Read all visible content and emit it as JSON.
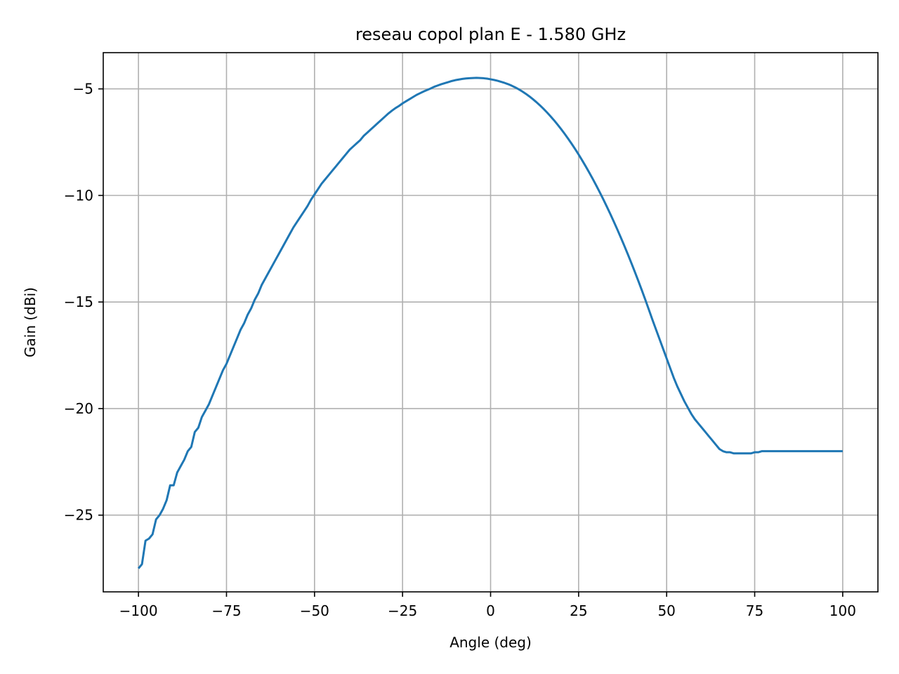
{
  "chart_data": {
    "type": "line",
    "title": "reseau copol plan E - 1.580 GHz",
    "xlabel": "Angle (deg)",
    "ylabel": "Gain (dBi)",
    "xlim": [
      -110,
      110
    ],
    "ylim": [
      -28.6,
      -3.3
    ],
    "xticks": [
      -100,
      -75,
      -50,
      -25,
      0,
      25,
      50,
      75,
      100
    ],
    "xtick_labels": [
      "−100",
      "−75",
      "−50",
      "−25",
      "0",
      "25",
      "50",
      "75",
      "100"
    ],
    "yticks": [
      -25,
      -20,
      -15,
      -10,
      -5
    ],
    "ytick_labels": [
      "−25",
      "−20",
      "−15",
      "−10",
      "−5"
    ],
    "grid": true,
    "color": "#1f77b4",
    "series": [
      {
        "x": [
          -100,
          -99,
          -98,
          -97,
          -96,
          -95,
          -94,
          -93,
          -92,
          -91,
          -90,
          -89,
          -88,
          -87,
          -86,
          -85,
          -84,
          -83,
          -82,
          -81,
          -80,
          -79,
          -78,
          -77,
          -76,
          -75,
          -74,
          -73,
          -72,
          -71,
          -70,
          -69,
          -68,
          -67,
          -66,
          -65,
          -64,
          -63,
          -62,
          -61,
          -60,
          -59,
          -58,
          -57,
          -56,
          -55,
          -54,
          -53,
          -52,
          -51,
          -50,
          -49,
          -48,
          -47,
          -46,
          -45,
          -44,
          -43,
          -42,
          -41,
          -40,
          -39,
          -38,
          -37,
          -36,
          -35,
          -34,
          -33,
          -32,
          -31,
          -30,
          -29,
          -28,
          -27,
          -26,
          -25,
          -24,
          -23,
          -22,
          -21,
          -20,
          -19,
          -18,
          -17,
          -16,
          -15,
          -14,
          -13,
          -12,
          -11,
          -10,
          -9,
          -8,
          -7,
          -6,
          -5,
          -4,
          -3,
          -2,
          -1,
          0,
          1,
          2,
          3,
          4,
          5,
          6,
          7,
          8,
          9,
          10,
          11,
          12,
          13,
          14,
          15,
          16,
          17,
          18,
          19,
          20,
          21,
          22,
          23,
          24,
          25,
          26,
          27,
          28,
          29,
          30,
          31,
          32,
          33,
          34,
          35,
          36,
          37,
          38,
          39,
          40,
          41,
          42,
          43,
          44,
          45,
          46,
          47,
          48,
          49,
          50,
          51,
          52,
          53,
          54,
          55,
          56,
          57,
          58,
          59,
          60,
          61,
          62,
          63,
          64,
          65,
          66,
          67,
          68,
          69,
          70,
          71,
          72,
          73,
          74,
          75,
          76,
          77,
          78,
          79,
          80,
          81,
          82,
          83,
          84,
          85,
          86,
          87,
          88,
          89,
          90,
          91,
          92,
          93,
          94,
          95,
          96,
          97,
          98,
          99,
          100
        ],
        "y": [
          -27.5,
          -27.3,
          -26.2,
          -26.1,
          -25.9,
          -25.2,
          -25.0,
          -24.7,
          -24.3,
          -23.6,
          -23.6,
          -23.0,
          -22.7,
          -22.4,
          -22.0,
          -21.8,
          -21.1,
          -20.9,
          -20.4,
          -20.1,
          -19.8,
          -19.4,
          -19.0,
          -18.6,
          -18.2,
          -17.9,
          -17.5,
          -17.1,
          -16.7,
          -16.3,
          -16.0,
          -15.6,
          -15.3,
          -14.9,
          -14.6,
          -14.2,
          -13.9,
          -13.6,
          -13.3,
          -13.0,
          -12.7,
          -12.4,
          -12.1,
          -11.8,
          -11.5,
          -11.25,
          -11.0,
          -10.75,
          -10.5,
          -10.2,
          -9.95,
          -9.7,
          -9.45,
          -9.25,
          -9.05,
          -8.85,
          -8.65,
          -8.45,
          -8.25,
          -8.05,
          -7.85,
          -7.7,
          -7.55,
          -7.4,
          -7.2,
          -7.05,
          -6.9,
          -6.75,
          -6.6,
          -6.45,
          -6.3,
          -6.15,
          -6.02,
          -5.9,
          -5.8,
          -5.68,
          -5.58,
          -5.48,
          -5.38,
          -5.28,
          -5.2,
          -5.12,
          -5.05,
          -4.98,
          -4.9,
          -4.84,
          -4.78,
          -4.73,
          -4.68,
          -4.63,
          -4.59,
          -4.56,
          -4.53,
          -4.51,
          -4.5,
          -4.49,
          -4.48,
          -4.49,
          -4.5,
          -4.52,
          -4.55,
          -4.58,
          -4.62,
          -4.67,
          -4.72,
          -4.78,
          -4.85,
          -4.93,
          -5.02,
          -5.12,
          -5.23,
          -5.35,
          -5.48,
          -5.62,
          -5.77,
          -5.93,
          -6.1,
          -6.28,
          -6.47,
          -6.67,
          -6.88,
          -7.1,
          -7.33,
          -7.57,
          -7.82,
          -8.08,
          -8.35,
          -8.63,
          -8.92,
          -9.22,
          -9.53,
          -9.85,
          -10.18,
          -10.52,
          -10.87,
          -11.23,
          -11.6,
          -11.98,
          -12.37,
          -12.77,
          -13.18,
          -13.6,
          -14.03,
          -14.47,
          -14.92,
          -15.38,
          -15.85,
          -16.3,
          -16.75,
          -17.2,
          -17.65,
          -18.1,
          -18.55,
          -18.95,
          -19.3,
          -19.65,
          -19.95,
          -20.25,
          -20.5,
          -20.7,
          -20.9,
          -21.1,
          -21.3,
          -21.5,
          -21.7,
          -21.9,
          -22.0,
          -22.05,
          -22.05,
          -22.1,
          -22.1,
          -22.1,
          -22.1,
          -22.1,
          -22.1,
          -22.05,
          -22.05,
          -22.0,
          -22.0,
          -22.0,
          -22.0,
          -22.0,
          -22.0,
          -22.0,
          -22.0,
          -22.0,
          -22.0,
          -22.0,
          -22.0,
          -22.0,
          -22.0,
          -22.0,
          -22.0,
          -22.0,
          -22.0,
          -22.0,
          -22.0,
          -22.0,
          -22.0,
          -22.0,
          -22.0
        ]
      }
    ]
  }
}
